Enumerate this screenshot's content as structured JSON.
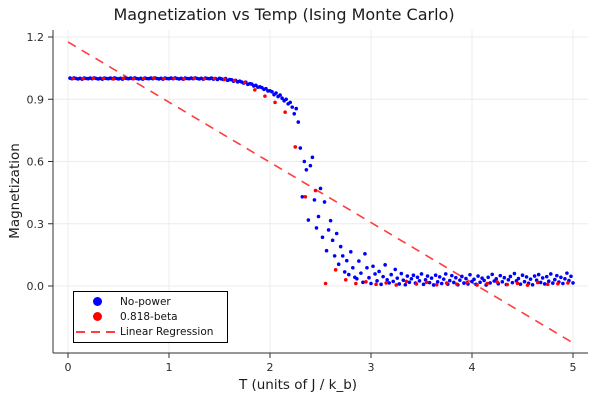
{
  "title": "Magnetization vs Temp (Ising Monte Carlo)",
  "x_axis_label": "T (units of J / k_b)",
  "y_axis_label": "Magnetization",
  "legend": {
    "entries": [
      {
        "label": "No-power",
        "marker": "circle",
        "color": "#0000ff"
      },
      {
        "label": "0.818-beta",
        "marker": "circle",
        "color": "#ff0000"
      },
      {
        "label": "Linear Regression",
        "marker": "dashed-line",
        "color": "#ff3d3d"
      }
    ]
  },
  "chart_data": {
    "type": "scatter",
    "title": "Magnetization vs Temp (Ising Monte Carlo)",
    "xlabel": "T (units of J / k_b)",
    "ylabel": "Magnetization",
    "xlim": [
      -0.15,
      5.15
    ],
    "ylim": [
      -0.32,
      1.23
    ],
    "grid": true,
    "legend_position": "bottom-left",
    "axes": {
      "xticks": [
        0,
        1,
        2,
        3,
        4,
        5
      ],
      "yticks": [
        0.0,
        0.3,
        0.6,
        0.9,
        1.2
      ]
    },
    "series": [
      {
        "name": "No-power",
        "type": "scatter",
        "color": "#0000ff",
        "marker": "circle",
        "points": [
          [
            0.02,
            1.002
          ],
          [
            0.04,
            0.999
          ],
          [
            0.06,
            1.003
          ],
          [
            0.08,
            1.0
          ],
          [
            0.1,
            0.998
          ],
          [
            0.12,
            1.001
          ],
          [
            0.14,
            0.997
          ],
          [
            0.16,
            1.002
          ],
          [
            0.18,
            1.0
          ],
          [
            0.2,
            0.999
          ],
          [
            0.22,
            1.002
          ],
          [
            0.24,
            0.999
          ],
          [
            0.26,
            1.003
          ],
          [
            0.28,
            1.0
          ],
          [
            0.3,
            0.998
          ],
          [
            0.32,
            1.001
          ],
          [
            0.34,
            0.997
          ],
          [
            0.36,
            1.002
          ],
          [
            0.38,
            1.0
          ],
          [
            0.4,
            0.999
          ],
          [
            0.42,
            1.002
          ],
          [
            0.44,
            0.999
          ],
          [
            0.46,
            1.003
          ],
          [
            0.48,
            1.0
          ],
          [
            0.5,
            0.998
          ],
          [
            0.52,
            1.001
          ],
          [
            0.54,
            0.997
          ],
          [
            0.56,
            1.002
          ],
          [
            0.58,
            1.0
          ],
          [
            0.6,
            0.999
          ],
          [
            0.62,
            1.002
          ],
          [
            0.64,
            0.999
          ],
          [
            0.66,
            1.003
          ],
          [
            0.68,
            1.0
          ],
          [
            0.7,
            0.998
          ],
          [
            0.72,
            1.001
          ],
          [
            0.74,
            0.997
          ],
          [
            0.76,
            1.002
          ],
          [
            0.78,
            1.0
          ],
          [
            0.8,
            0.999
          ],
          [
            0.82,
            1.002
          ],
          [
            0.84,
            0.999
          ],
          [
            0.86,
            1.003
          ],
          [
            0.88,
            1.0
          ],
          [
            0.9,
            0.998
          ],
          [
            0.92,
            1.001
          ],
          [
            0.94,
            0.997
          ],
          [
            0.96,
            1.002
          ],
          [
            0.98,
            1.0
          ],
          [
            1.0,
            0.999
          ],
          [
            1.02,
            1.002
          ],
          [
            1.04,
            0.999
          ],
          [
            1.06,
            1.003
          ],
          [
            1.08,
            1.0
          ],
          [
            1.1,
            0.998
          ],
          [
            1.12,
            1.001
          ],
          [
            1.14,
            0.997
          ],
          [
            1.16,
            1.002
          ],
          [
            1.18,
            1.0
          ],
          [
            1.2,
            0.999
          ],
          [
            1.22,
            1.002
          ],
          [
            1.24,
            0.999
          ],
          [
            1.26,
            1.003
          ],
          [
            1.28,
            1.0
          ],
          [
            1.3,
            0.998
          ],
          [
            1.32,
            1.001
          ],
          [
            1.34,
            0.997
          ],
          [
            1.36,
            1.002
          ],
          [
            1.38,
            1.0
          ],
          [
            1.4,
            0.999
          ],
          [
            1.42,
            1.002
          ],
          [
            1.44,
            0.997
          ],
          [
            1.46,
            1.0
          ],
          [
            1.48,
            0.995
          ],
          [
            1.5,
            1.001
          ],
          [
            1.52,
            0.998
          ],
          [
            1.54,
            0.995
          ],
          [
            1.56,
            1.0
          ],
          [
            1.58,
            0.991
          ],
          [
            1.6,
            0.995
          ],
          [
            1.62,
            0.994
          ],
          [
            1.64,
            0.987
          ],
          [
            1.66,
            0.991
          ],
          [
            1.68,
            0.984
          ],
          [
            1.7,
            0.987
          ],
          [
            1.72,
            0.983
          ],
          [
            1.74,
            0.978
          ],
          [
            1.76,
            0.982
          ],
          [
            1.78,
            0.972
          ],
          [
            1.8,
            0.975
          ],
          [
            1.82,
            0.973
          ],
          [
            1.84,
            0.964
          ],
          [
            1.86,
            0.967
          ],
          [
            1.88,
            0.958
          ],
          [
            1.9,
            0.96
          ],
          [
            1.92,
            0.956
          ],
          [
            1.94,
            0.948
          ],
          [
            1.96,
            0.951
          ],
          [
            1.98,
            0.94
          ],
          [
            2.0,
            0.941
          ],
          [
            2.02,
            0.936
          ],
          [
            2.04,
            0.922
          ],
          [
            2.06,
            0.93
          ],
          [
            2.08,
            0.913
          ],
          [
            2.1,
            0.92
          ],
          [
            2.12,
            0.905
          ],
          [
            2.14,
            0.893
          ],
          [
            2.16,
            0.9
          ],
          [
            2.18,
            0.878
          ],
          [
            2.2,
            0.885
          ],
          [
            2.22,
            0.862
          ],
          [
            2.24,
            0.83
          ],
          [
            2.26,
            0.855
          ],
          [
            2.28,
            0.79
          ],
          [
            2.3,
            0.665
          ],
          [
            2.32,
            0.43
          ],
          [
            2.34,
            0.6
          ],
          [
            2.36,
            0.56
          ],
          [
            2.38,
            0.318
          ],
          [
            2.4,
            0.58
          ],
          [
            2.42,
            0.62
          ],
          [
            2.44,
            0.415
          ],
          [
            2.46,
            0.28
          ],
          [
            2.48,
            0.335
          ],
          [
            2.5,
            0.47
          ],
          [
            2.52,
            0.235
          ],
          [
            2.54,
            0.405
          ],
          [
            2.56,
            0.17
          ],
          [
            2.58,
            0.27
          ],
          [
            2.6,
            0.315
          ],
          [
            2.62,
            0.22
          ],
          [
            2.64,
            0.145
          ],
          [
            2.66,
            0.253
          ],
          [
            2.68,
            0.105
          ],
          [
            2.7,
            0.19
          ],
          [
            2.72,
            0.145
          ],
          [
            2.74,
            0.068
          ],
          [
            2.76,
            0.122
          ],
          [
            2.78,
            0.055
          ],
          [
            2.8,
            0.165
          ],
          [
            2.82,
            0.088
          ],
          [
            2.84,
            0.042
          ],
          [
            2.86,
            0.035
          ],
          [
            2.88,
            0.12
          ],
          [
            2.9,
            0.062
          ],
          [
            2.92,
            0.018
          ],
          [
            2.94,
            0.155
          ],
          [
            2.96,
            0.088
          ],
          [
            2.98,
            0.04
          ],
          [
            3.0,
            0.012
          ],
          [
            3.02,
            0.095
          ],
          [
            3.04,
            0.058
          ],
          [
            3.06,
            0.025
          ],
          [
            3.08,
            0.07
          ],
          [
            3.1,
            0.008
          ],
          [
            3.12,
            0.045
          ],
          [
            3.14,
            0.102
          ],
          [
            3.16,
            0.03
          ],
          [
            3.18,
            0.015
          ],
          [
            3.2,
            0.055
          ],
          [
            3.22,
            0.022
          ],
          [
            3.24,
            0.08
          ],
          [
            3.26,
            0.038
          ],
          [
            3.28,
            0.01
          ],
          [
            3.3,
            0.06
          ],
          [
            3.32,
            0.028
          ],
          [
            3.34,
            0.006
          ],
          [
            3.36,
            0.048
          ],
          [
            3.38,
            0.018
          ],
          [
            3.4,
            0.035
          ],
          [
            3.42,
            0.052
          ],
          [
            3.44,
            0.014
          ],
          [
            3.46,
            0.042
          ],
          [
            3.48,
            0.025
          ],
          [
            3.5,
            0.058
          ],
          [
            3.52,
            0.008
          ],
          [
            3.54,
            0.03
          ],
          [
            3.56,
            0.048
          ],
          [
            3.58,
            0.016
          ],
          [
            3.6,
            0.038
          ],
          [
            3.62,
            0.005
          ],
          [
            3.64,
            0.052
          ],
          [
            3.66,
            0.02
          ],
          [
            3.68,
            0.044
          ],
          [
            3.7,
            0.012
          ],
          [
            3.72,
            0.033
          ],
          [
            3.74,
            0.058
          ],
          [
            3.76,
            0.009
          ],
          [
            3.78,
            0.026
          ],
          [
            3.8,
            0.05
          ],
          [
            3.82,
            0.017
          ],
          [
            3.84,
            0.04
          ],
          [
            3.86,
            0.006
          ],
          [
            3.88,
            0.028
          ],
          [
            3.9,
            0.046
          ],
          [
            3.92,
            0.014
          ],
          [
            3.94,
            0.036
          ],
          [
            3.96,
            0.01
          ],
          [
            3.98,
            0.054
          ],
          [
            4.0,
            0.022
          ],
          [
            4.02,
            0.032
          ],
          [
            4.04,
            0.008
          ],
          [
            4.06,
            0.048
          ],
          [
            4.08,
            0.018
          ],
          [
            4.1,
            0.038
          ],
          [
            4.12,
            0.027
          ],
          [
            4.14,
            0.005
          ],
          [
            4.16,
            0.042
          ],
          [
            4.18,
            0.015
          ],
          [
            4.2,
            0.056
          ],
          [
            4.22,
            0.024
          ],
          [
            4.24,
            0.035
          ],
          [
            4.26,
            0.011
          ],
          [
            4.28,
            0.05
          ],
          [
            4.3,
            0.02
          ],
          [
            4.32,
            0.04
          ],
          [
            4.34,
            0.007
          ],
          [
            4.36,
            0.03
          ],
          [
            4.38,
            0.046
          ],
          [
            4.4,
            0.016
          ],
          [
            4.42,
            0.06
          ],
          [
            4.44,
            0.025
          ],
          [
            4.46,
            0.036
          ],
          [
            4.48,
            0.009
          ],
          [
            4.5,
            0.052
          ],
          [
            4.52,
            0.021
          ],
          [
            4.54,
            0.044
          ],
          [
            4.56,
            0.013
          ],
          [
            4.58,
            0.033
          ],
          [
            4.6,
            0.006
          ],
          [
            4.62,
            0.048
          ],
          [
            4.64,
            0.028
          ],
          [
            4.66,
            0.055
          ],
          [
            4.68,
            0.017
          ],
          [
            4.7,
            0.039
          ],
          [
            4.72,
            0.01
          ],
          [
            4.74,
            0.045
          ],
          [
            4.76,
            0.023
          ],
          [
            4.78,
            0.058
          ],
          [
            4.8,
            0.014
          ],
          [
            4.82,
            0.031
          ],
          [
            4.84,
            0.05
          ],
          [
            4.86,
            0.019
          ],
          [
            4.88,
            0.042
          ],
          [
            4.9,
            0.012
          ],
          [
            4.92,
            0.035
          ],
          [
            4.94,
            0.062
          ],
          [
            4.96,
            0.026
          ],
          [
            4.98,
            0.047
          ],
          [
            5.0,
            0.015
          ]
        ]
      },
      {
        "name": "0.818-beta",
        "type": "scatter",
        "color": "#ff0000",
        "marker": "circle",
        "points": [
          [
            0.05,
            1.0
          ],
          [
            0.15,
            0.999
          ],
          [
            0.25,
            1.001
          ],
          [
            0.35,
            1.0
          ],
          [
            0.45,
            0.998
          ],
          [
            0.55,
            1.001
          ],
          [
            0.65,
            0.999
          ],
          [
            0.75,
            1.0
          ],
          [
            0.85,
            1.002
          ],
          [
            0.95,
            0.999
          ],
          [
            1.05,
            1.0
          ],
          [
            1.15,
            0.998
          ],
          [
            1.25,
            1.001
          ],
          [
            1.35,
            0.999
          ],
          [
            1.45,
            1.0
          ],
          [
            1.55,
            0.996
          ],
          [
            1.65,
            0.99
          ],
          [
            1.75,
            0.981
          ],
          [
            1.85,
            0.945
          ],
          [
            1.95,
            0.915
          ],
          [
            2.05,
            0.885
          ],
          [
            2.15,
            0.838
          ],
          [
            2.25,
            0.67
          ],
          [
            2.35,
            0.43
          ],
          [
            2.45,
            0.46
          ],
          [
            2.55,
            0.012
          ],
          [
            2.65,
            0.078
          ],
          [
            2.75,
            0.03
          ],
          [
            2.85,
            0.012
          ],
          [
            2.95,
            0.02
          ],
          [
            3.05,
            0.008
          ],
          [
            3.15,
            0.015
          ],
          [
            3.25,
            0.005
          ],
          [
            3.35,
            0.022
          ],
          [
            3.45,
            0.01
          ],
          [
            3.55,
            0.018
          ],
          [
            3.65,
            0.006
          ],
          [
            3.75,
            0.014
          ],
          [
            3.85,
            0.009
          ],
          [
            3.95,
            0.016
          ],
          [
            4.05,
            0.005
          ],
          [
            4.15,
            0.012
          ],
          [
            4.25,
            0.019
          ],
          [
            4.35,
            0.007
          ],
          [
            4.45,
            0.013
          ],
          [
            4.55,
            0.004
          ],
          [
            4.65,
            0.017
          ],
          [
            4.75,
            0.008
          ],
          [
            4.85,
            0.011
          ],
          [
            4.95,
            0.015
          ]
        ]
      },
      {
        "name": "Linear Regression",
        "type": "line",
        "style": "dashed",
        "color": "#ff3d3d",
        "intercept": 1.176,
        "slope": -0.29,
        "x_start": 0,
        "x_end": 5
      }
    ]
  }
}
